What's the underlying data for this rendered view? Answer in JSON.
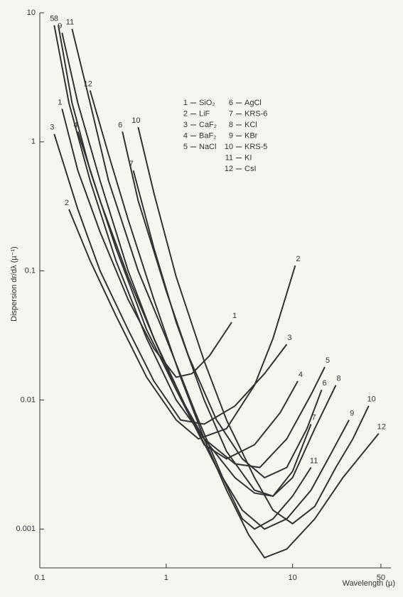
{
  "chart_data": {
    "type": "line",
    "y_label": "Dispersion dr/dλ (µ⁻¹)",
    "x_label": "Wavelength (µ)",
    "log_x": true,
    "log_y": true,
    "xlim": [
      0.1,
      60
    ],
    "ylim": [
      0.0005,
      10
    ],
    "xticks": [
      0.1,
      1,
      10,
      50
    ],
    "yticks": [
      10,
      1,
      0.1,
      0.01,
      0.001
    ],
    "color": "#333333",
    "series": [
      {
        "number": "1",
        "name": "SiO₂",
        "x": [
          0.15,
          0.2,
          0.3,
          0.5,
          0.8,
          1.2,
          1.6,
          2.2,
          3.3
        ],
        "values": [
          1.8,
          0.6,
          0.2,
          0.06,
          0.025,
          0.015,
          0.016,
          0.022,
          0.04
        ]
      },
      {
        "number": "2",
        "name": "LiF",
        "x": [
          0.17,
          0.25,
          0.4,
          0.7,
          1.2,
          1.8,
          3,
          5,
          7,
          10.5
        ],
        "values": [
          0.3,
          0.12,
          0.045,
          0.015,
          0.007,
          0.005,
          0.006,
          0.013,
          0.03,
          0.11
        ]
      },
      {
        "number": "3",
        "name": "CaF₂",
        "x": [
          0.13,
          0.2,
          0.3,
          0.5,
          0.8,
          1.3,
          2,
          3.5,
          6,
          9
        ],
        "values": [
          1.15,
          0.3,
          0.1,
          0.035,
          0.014,
          0.007,
          0.0065,
          0.009,
          0.016,
          0.027
        ]
      },
      {
        "number": "4",
        "name": "BaF₂",
        "x": [
          0.2,
          0.3,
          0.5,
          0.8,
          1.2,
          2,
          3,
          5,
          8,
          11
        ],
        "values": [
          1.2,
          0.35,
          0.09,
          0.03,
          0.012,
          0.0045,
          0.0035,
          0.0045,
          0.008,
          0.014
        ]
      },
      {
        "number": "5",
        "name": "NaCl",
        "x": [
          0.13,
          0.17,
          0.25,
          0.4,
          0.7,
          1.2,
          2,
          3.5,
          5.5,
          9,
          14,
          18
        ],
        "values": [
          8,
          2,
          0.5,
          0.12,
          0.03,
          0.01,
          0.005,
          0.0032,
          0.003,
          0.005,
          0.011,
          0.018
        ]
      },
      {
        "number": "6",
        "name": "AgCl",
        "x": [
          0.45,
          0.6,
          1,
          1.5,
          2.5,
          4,
          6,
          9,
          13,
          17
        ],
        "values": [
          1.2,
          0.35,
          0.07,
          0.022,
          0.007,
          0.0035,
          0.0025,
          0.003,
          0.006,
          0.012
        ]
      },
      {
        "number": "7",
        "name": "KRS-6",
        "x": [
          0.55,
          0.8,
          1.2,
          2,
          3,
          5,
          7,
          10,
          14
        ],
        "values": [
          0.6,
          0.15,
          0.04,
          0.01,
          0.004,
          0.002,
          0.0018,
          0.0028,
          0.0065
        ]
      },
      {
        "number": "8",
        "name": "KCl",
        "x": [
          0.14,
          0.18,
          0.25,
          0.4,
          0.7,
          1.2,
          2,
          3.5,
          5,
          7,
          10,
          15,
          22
        ],
        "values": [
          8,
          2,
          0.6,
          0.15,
          0.035,
          0.012,
          0.005,
          0.0025,
          0.0019,
          0.0018,
          0.0025,
          0.006,
          0.013
        ]
      },
      {
        "number": "9",
        "name": "KBr",
        "x": [
          0.15,
          0.2,
          0.3,
          0.5,
          0.8,
          1.5,
          2.5,
          4,
          6,
          9,
          14,
          20,
          28
        ],
        "values": [
          7,
          2,
          0.5,
          0.1,
          0.03,
          0.008,
          0.003,
          0.0014,
          0.001,
          0.0012,
          0.002,
          0.0038,
          0.007
        ]
      },
      {
        "number": "10",
        "name": "KRS-5",
        "x": [
          0.6,
          0.8,
          1.2,
          2,
          3,
          5,
          7,
          10,
          15,
          22,
          30,
          40
        ],
        "values": [
          1.3,
          0.4,
          0.09,
          0.02,
          0.007,
          0.0025,
          0.0014,
          0.0011,
          0.0015,
          0.003,
          0.005,
          0.009
        ]
      },
      {
        "number": "11",
        "name": "KI",
        "x": [
          0.18,
          0.25,
          0.35,
          0.6,
          1,
          1.7,
          2.8,
          4,
          5,
          7,
          10,
          14
        ],
        "values": [
          7.5,
          2,
          0.5,
          0.1,
          0.03,
          0.008,
          0.0025,
          0.0012,
          0.001,
          0.0012,
          0.0018,
          0.003
        ]
      },
      {
        "number": "12",
        "name": "CsI",
        "x": [
          0.25,
          0.35,
          0.5,
          0.8,
          1.3,
          2,
          3,
          4.5,
          6,
          9,
          15,
          25,
          48
        ],
        "values": [
          2.5,
          0.8,
          0.25,
          0.06,
          0.015,
          0.005,
          0.002,
          0.0009,
          0.0006,
          0.0007,
          0.0012,
          0.0025,
          0.0055
        ]
      }
    ]
  }
}
